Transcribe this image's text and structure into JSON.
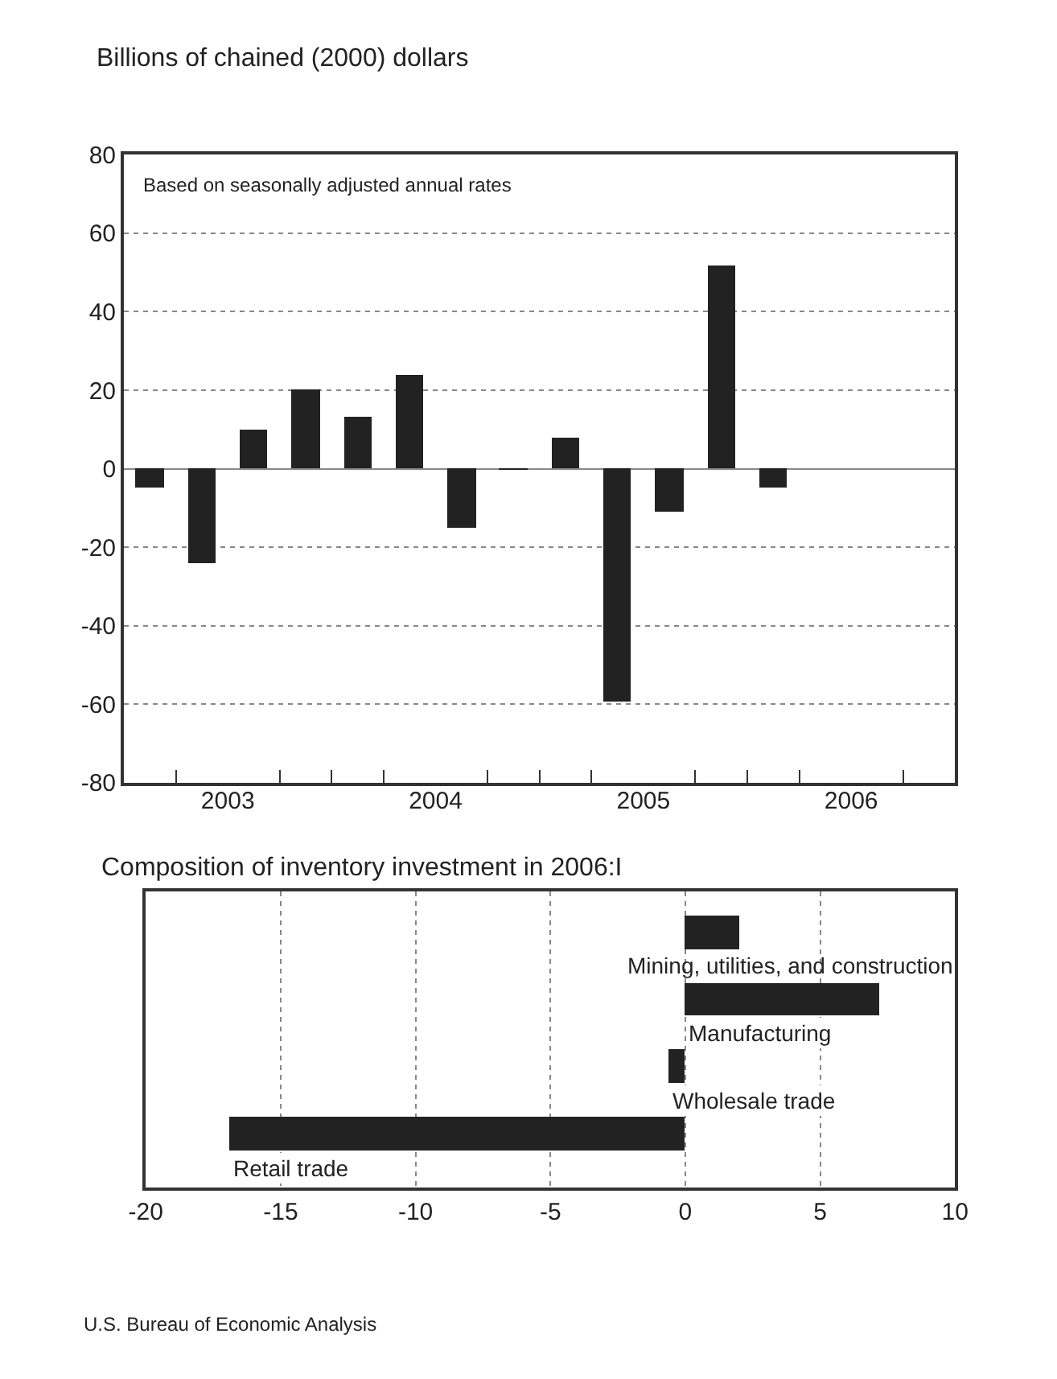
{
  "chart_data": [
    {
      "type": "bar",
      "ylabel": "Billions of chained (2000) dollars",
      "annotations": [
        "Based on seasonally adjusted annual rates"
      ],
      "x": [
        2003.125,
        2003.375,
        2003.625,
        2003.875,
        2004.125,
        2004.375,
        2004.625,
        2004.875,
        2005.125,
        2005.375,
        2005.625,
        2005.875,
        2006.125
      ],
      "values": [
        -5,
        -24,
        10,
        20,
        13,
        24,
        -15,
        -0.3,
        8,
        -59.5,
        -11,
        51.5,
        -5
      ],
      "color": "#222222",
      "xlim": [
        2003,
        2007
      ],
      "xticks": [
        {
          "value": 2003.25,
          "label": null
        },
        {
          "value": 2003.5,
          "label": "2003"
        },
        {
          "value": 2003.75,
          "label": null
        },
        {
          "value": 2004,
          "label": null
        },
        {
          "value": 2004.25,
          "label": null
        },
        {
          "value": 2004.5,
          "label": "2004"
        },
        {
          "value": 2004.75,
          "label": null
        },
        {
          "value": 2005,
          "label": null
        },
        {
          "value": 2005.25,
          "label": null
        },
        {
          "value": 2005.5,
          "label": "2005"
        },
        {
          "value": 2005.75,
          "label": null
        },
        {
          "value": 2006,
          "label": null
        },
        {
          "value": 2006.25,
          "label": null
        },
        {
          "value": 2006.5,
          "label": "2006"
        },
        {
          "value": 2006.75,
          "label": null
        }
      ],
      "ylim": [
        -80,
        80
      ],
      "yticks": [
        -80,
        -60,
        -40,
        -20,
        0,
        20,
        40,
        60,
        80
      ],
      "grid": "y"
    },
    {
      "type": "bar",
      "orientation": "horizontal",
      "title": "Composition of inventory investment in 2006:I",
      "categories": [
        "Mining, utilities, and construction",
        "Manufacturing",
        "Wholesale trade",
        "Retail trade"
      ],
      "values": [
        2,
        7.2,
        -0.6,
        -16.9
      ],
      "color": "#222222",
      "xlim": [
        -20,
        10
      ],
      "xticks": [
        -20,
        -15,
        -10,
        -5,
        0,
        5,
        10
      ],
      "grid": "x",
      "annotations": [
        "U.S. Bureau of Economic Analysis"
      ]
    }
  ]
}
